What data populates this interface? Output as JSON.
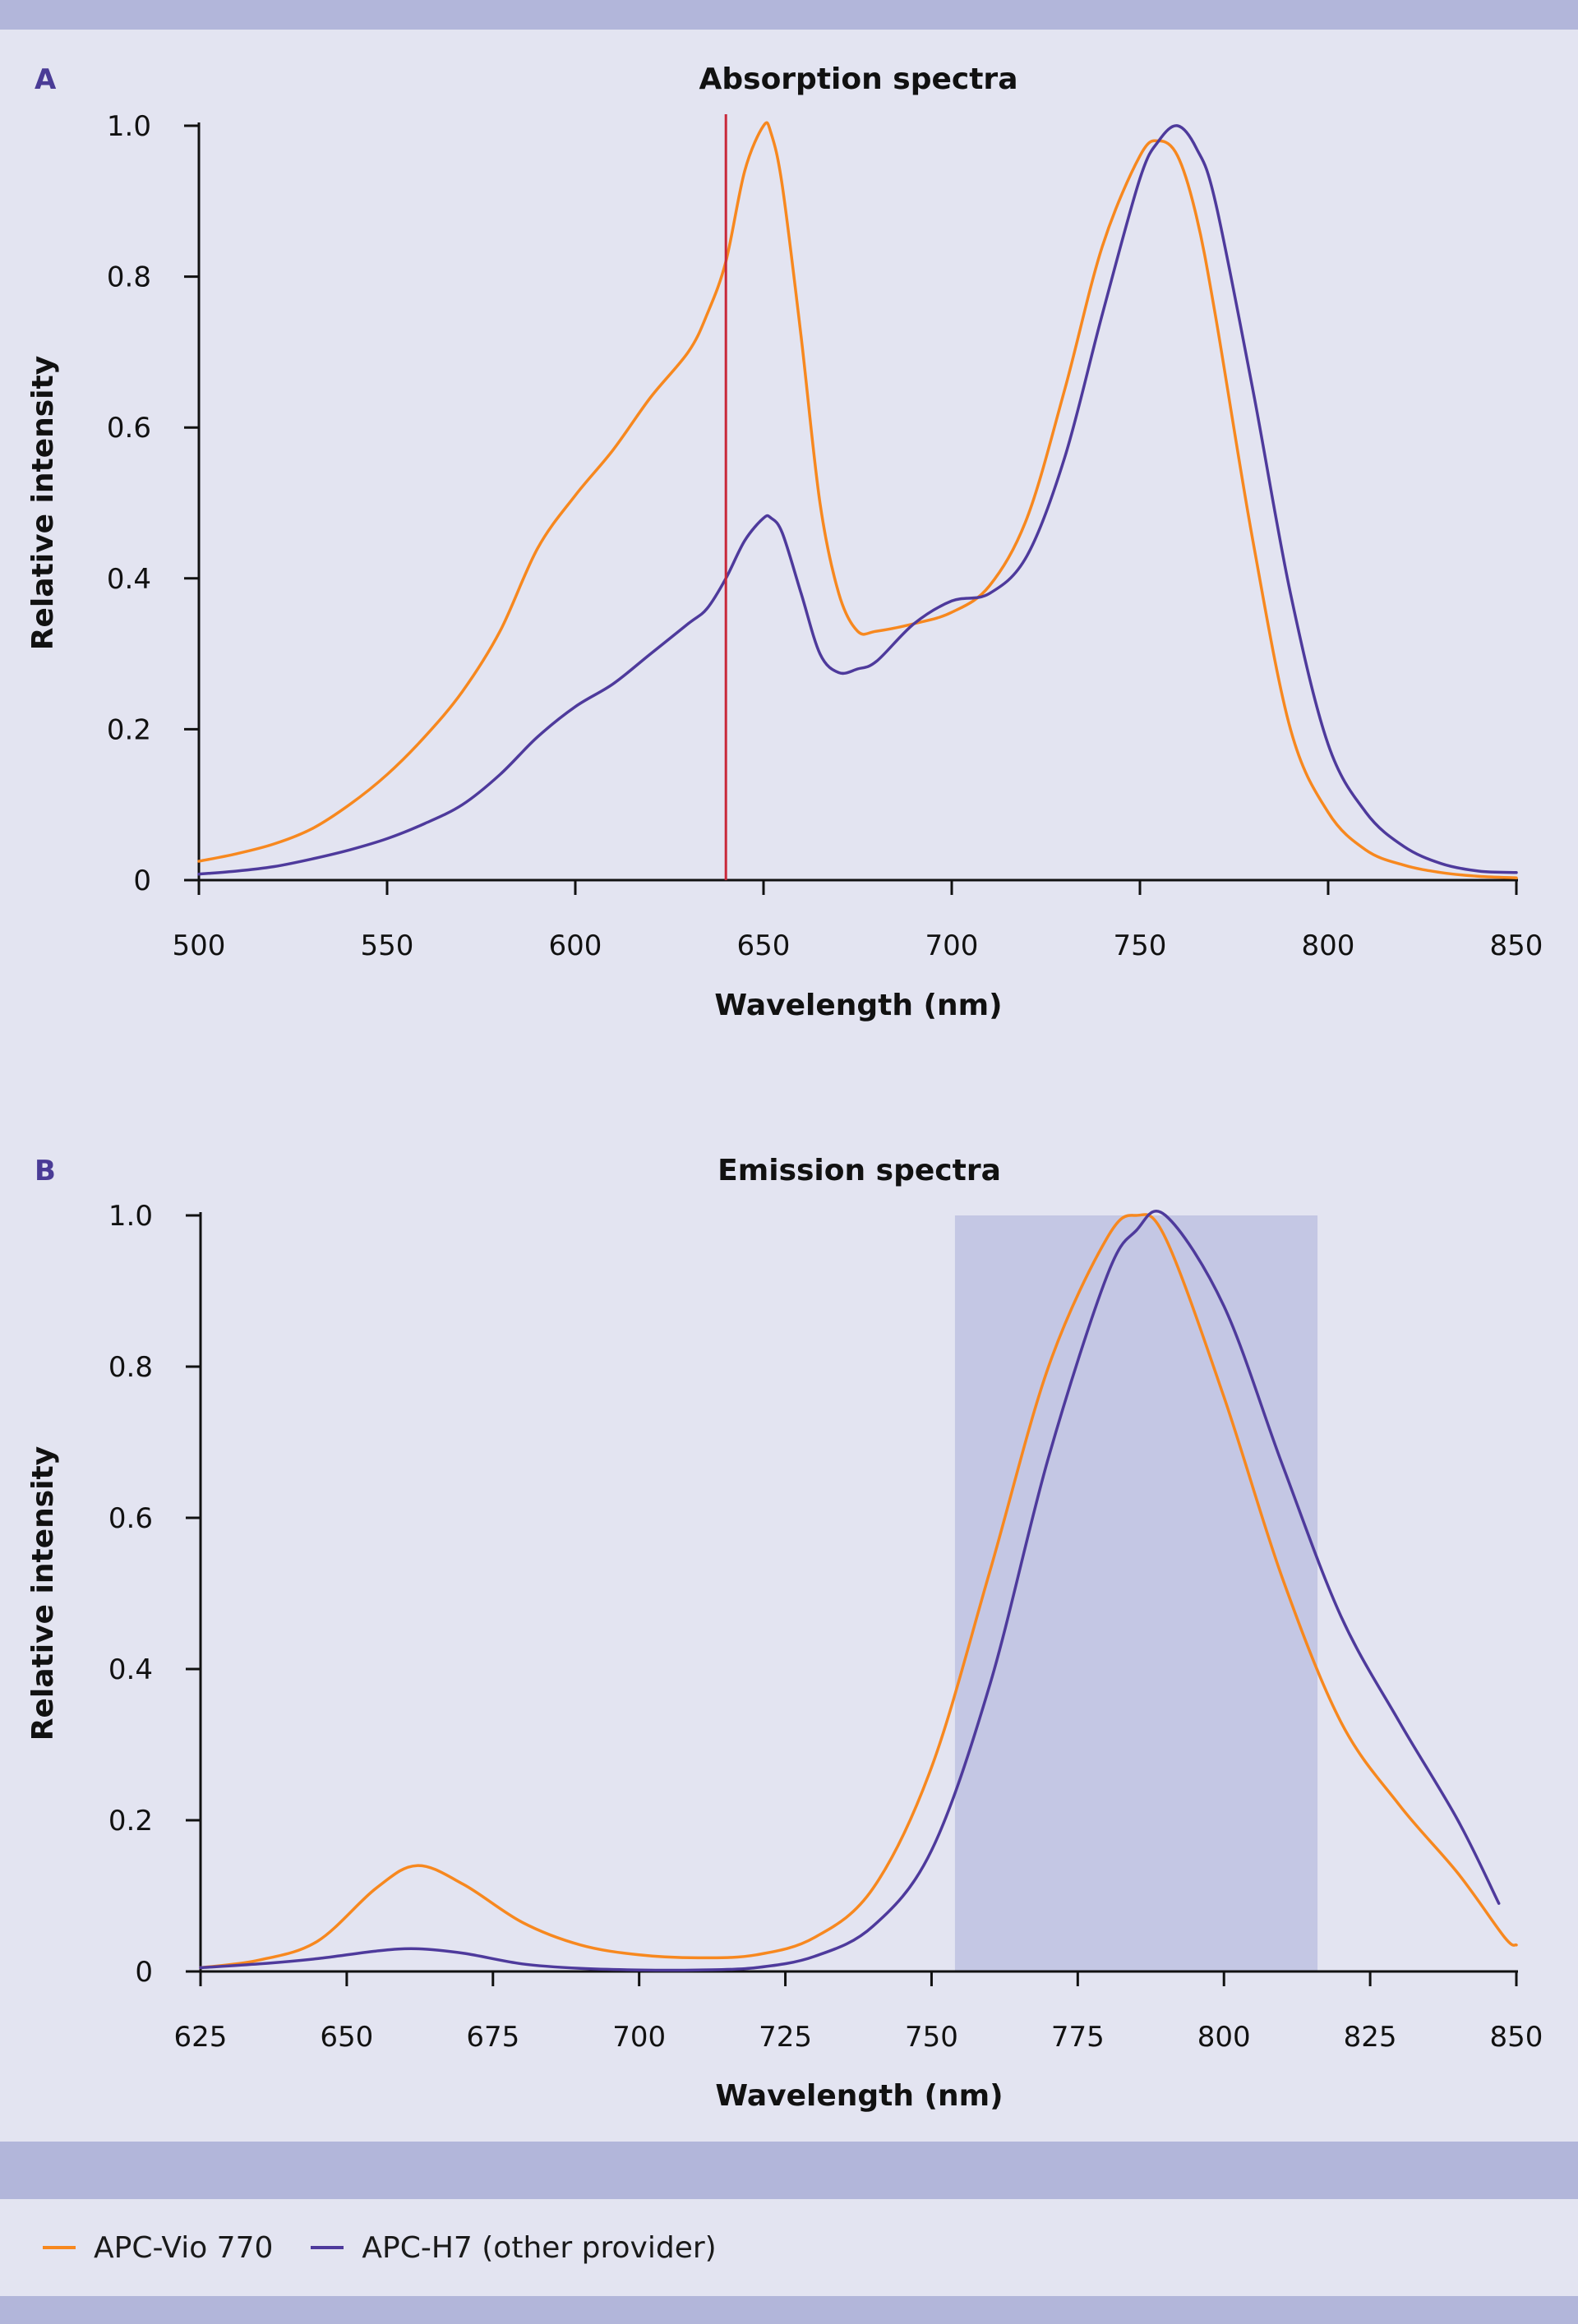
{
  "colors": {
    "orange": "#f7881f",
    "purple": "#4e3a9c",
    "laser_line": "#c8283a",
    "band_fill": "#c4c7e4",
    "frame_band": "#b2b6da",
    "background": "#e3e4f1"
  },
  "legend": [
    {
      "name": "APC-Vio 770",
      "color": "#f7881f"
    },
    {
      "name": "APC-H7 (other provider)",
      "color": "#4e3a9c"
    }
  ],
  "chart_data": [
    {
      "panel": "A",
      "type": "line",
      "title": "Absorption spectra",
      "xlabel": "Wavelength (nm)",
      "ylabel": "Relative intensity",
      "xlim": [
        500,
        850
      ],
      "ylim": [
        0,
        1.0
      ],
      "xticks": [
        500,
        550,
        600,
        650,
        700,
        750,
        800,
        850
      ],
      "yticks": [
        0,
        0.2,
        0.4,
        0.6,
        0.8,
        1.0
      ],
      "ytick_labels": [
        "0",
        "0.2",
        "0.4",
        "0.6",
        "0.8",
        "1.0"
      ],
      "grid": false,
      "reference_line_x": 640,
      "series": [
        {
          "name": "APC-Vio 770",
          "color": "#f7881f",
          "x": [
            500,
            510,
            520,
            530,
            540,
            550,
            560,
            570,
            580,
            590,
            600,
            610,
            620,
            630,
            635,
            640,
            645,
            650,
            652,
            655,
            660,
            665,
            670,
            675,
            680,
            690,
            700,
            710,
            720,
            730,
            740,
            750,
            755,
            760,
            765,
            770,
            780,
            790,
            800,
            810,
            820,
            830,
            840,
            850
          ],
          "y": [
            0.025,
            0.035,
            0.048,
            0.068,
            0.1,
            0.14,
            0.19,
            0.25,
            0.33,
            0.44,
            0.51,
            0.57,
            0.64,
            0.7,
            0.75,
            0.82,
            0.94,
            1.0,
            0.99,
            0.92,
            0.72,
            0.5,
            0.38,
            0.33,
            0.33,
            0.34,
            0.355,
            0.39,
            0.48,
            0.65,
            0.84,
            0.96,
            0.98,
            0.96,
            0.88,
            0.75,
            0.45,
            0.2,
            0.09,
            0.04,
            0.02,
            0.01,
            0.005,
            0.003
          ]
        },
        {
          "name": "APC-H7 (other provider)",
          "color": "#4e3a9c",
          "x": [
            500,
            510,
            520,
            530,
            540,
            550,
            560,
            570,
            580,
            590,
            600,
            610,
            620,
            630,
            635,
            640,
            645,
            650,
            652,
            655,
            660,
            665,
            670,
            675,
            680,
            690,
            700,
            710,
            720,
            730,
            740,
            750,
            755,
            760,
            765,
            770,
            780,
            790,
            800,
            810,
            820,
            830,
            840,
            850
          ],
          "y": [
            0.008,
            0.012,
            0.018,
            0.028,
            0.04,
            0.055,
            0.075,
            0.1,
            0.14,
            0.19,
            0.23,
            0.26,
            0.3,
            0.34,
            0.36,
            0.4,
            0.45,
            0.48,
            0.48,
            0.46,
            0.38,
            0.3,
            0.275,
            0.28,
            0.29,
            0.34,
            0.37,
            0.38,
            0.43,
            0.56,
            0.75,
            0.93,
            0.98,
            1.0,
            0.97,
            0.9,
            0.65,
            0.38,
            0.18,
            0.09,
            0.045,
            0.022,
            0.012,
            0.01
          ]
        }
      ]
    },
    {
      "panel": "B",
      "type": "line",
      "title": "Emission spectra",
      "xlabel": "Wavelength (nm)",
      "ylabel": "Relative intensity",
      "xlim": [
        625,
        850
      ],
      "ylim": [
        0,
        1.0
      ],
      "xticks": [
        625,
        650,
        675,
        700,
        725,
        750,
        775,
        800,
        825,
        850
      ],
      "yticks": [
        0,
        0.2,
        0.4,
        0.6,
        0.8,
        1.0
      ],
      "ytick_labels": [
        "0",
        "0.2",
        "0.4",
        "0.6",
        "0.8",
        "1.0"
      ],
      "grid": false,
      "shaded_band_x": [
        754,
        816
      ],
      "series": [
        {
          "name": "APC-Vio 770",
          "color": "#f7881f",
          "x": [
            625,
            635,
            645,
            655,
            662,
            670,
            680,
            690,
            700,
            710,
            720,
            730,
            740,
            750,
            760,
            770,
            780,
            785,
            790,
            800,
            810,
            820,
            830,
            840,
            848,
            850
          ],
          "y": [
            0.005,
            0.015,
            0.04,
            0.11,
            0.14,
            0.115,
            0.065,
            0.035,
            0.022,
            0.018,
            0.022,
            0.045,
            0.11,
            0.27,
            0.53,
            0.8,
            0.97,
            1.0,
            0.97,
            0.76,
            0.52,
            0.33,
            0.22,
            0.13,
            0.045,
            0.035
          ]
        },
        {
          "name": "APC-H7 (other provider)",
          "color": "#4e3a9c",
          "x": [
            625,
            635,
            645,
            655,
            662,
            670,
            680,
            690,
            700,
            710,
            720,
            730,
            740,
            750,
            760,
            770,
            780,
            785,
            790,
            800,
            810,
            820,
            830,
            840,
            847
          ],
          "y": [
            0.005,
            0.01,
            0.017,
            0.027,
            0.03,
            0.024,
            0.01,
            0.004,
            0.002,
            0.002,
            0.005,
            0.02,
            0.06,
            0.16,
            0.38,
            0.68,
            0.92,
            0.98,
            1.0,
            0.88,
            0.67,
            0.47,
            0.33,
            0.2,
            0.09
          ]
        }
      ]
    }
  ]
}
